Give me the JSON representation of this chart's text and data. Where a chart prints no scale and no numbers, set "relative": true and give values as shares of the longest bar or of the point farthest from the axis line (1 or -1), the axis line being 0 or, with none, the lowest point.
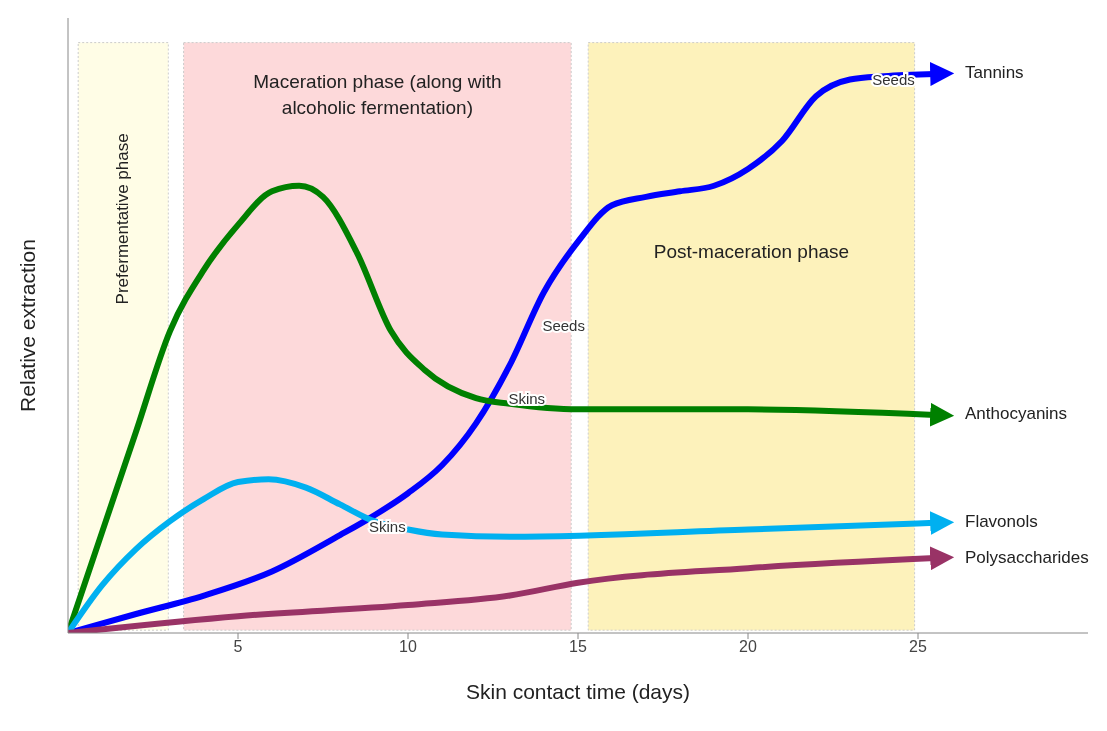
{
  "chart_data": {
    "type": "line",
    "relative": true,
    "xlabel": "Skin contact time (days)",
    "ylabel": "Relative extraction",
    "xlim": [
      0,
      30
    ],
    "xticks": [
      5,
      10,
      15,
      20,
      25
    ],
    "grid": false,
    "legend": "right",
    "bands": [
      {
        "axis": "x",
        "from": 0.3,
        "to": 2.95,
        "label": "Prefermentative phase",
        "color": "#fffde6"
      },
      {
        "axis": "x",
        "from": 3.4,
        "to": 14.8,
        "label": "Maceration phase (along with alcoholic fermentation)",
        "color": "#fdd9da"
      },
      {
        "axis": "x",
        "from": 15.3,
        "to": 24.9,
        "label": "Post-maceration phase",
        "color": "#fdf2bb"
      }
    ],
    "series": [
      {
        "name": "Tannins",
        "color": "#0000ff",
        "x": [
          0,
          2,
          4,
          6,
          8,
          9,
          10,
          11,
          12,
          13,
          14,
          15,
          16,
          17,
          18,
          19,
          20,
          21,
          22,
          23,
          24,
          25.5
        ],
        "values": [
          0,
          0.034,
          0.067,
          0.11,
          0.175,
          0.21,
          0.25,
          0.3,
          0.375,
          0.48,
          0.61,
          0.7,
          0.765,
          0.78,
          0.79,
          0.8,
          0.83,
          0.88,
          0.96,
          0.99,
          0.996,
          1
        ]
      },
      {
        "name": "Anthocyanins",
        "color": "#008000",
        "x": [
          0,
          1,
          2,
          3,
          4,
          5,
          6,
          6.8,
          7.5,
          8.5,
          9.5,
          10.5,
          12,
          13,
          15,
          20,
          25.5
        ],
        "values": [
          0,
          0.18,
          0.36,
          0.54,
          0.65,
          0.73,
          0.79,
          0.8,
          0.78,
          0.68,
          0.54,
          0.47,
          0.42,
          0.41,
          0.4,
          0.4,
          0.39
        ]
      },
      {
        "name": "Flavonols",
        "color": "#00b0f0",
        "x": [
          0,
          1,
          2,
          3,
          4,
          5,
          5.9,
          7,
          8,
          9,
          10,
          11,
          13,
          20,
          25.5
        ],
        "values": [
          0,
          0.085,
          0.15,
          0.2,
          0.24,
          0.27,
          0.275,
          0.26,
          0.23,
          0.2,
          0.185,
          0.176,
          0.172,
          0.185,
          0.197
        ]
      },
      {
        "name": "Polysaccharides",
        "color": "#993366",
        "x": [
          0,
          5,
          10,
          13,
          15,
          20,
          25.5
        ],
        "values": [
          0,
          0.03,
          0.05,
          0.067,
          0.09,
          0.116,
          0.134
        ]
      }
    ],
    "annotations": [
      {
        "text": "Skins",
        "x": 8.5,
        "y": 0.19
      },
      {
        "text": "Skins",
        "x": 12.6,
        "y": 0.42
      },
      {
        "text": "Seeds",
        "x": 13.6,
        "y": 0.55
      },
      {
        "text": "Seeds",
        "x": 23.3,
        "y": 0.99
      }
    ]
  }
}
